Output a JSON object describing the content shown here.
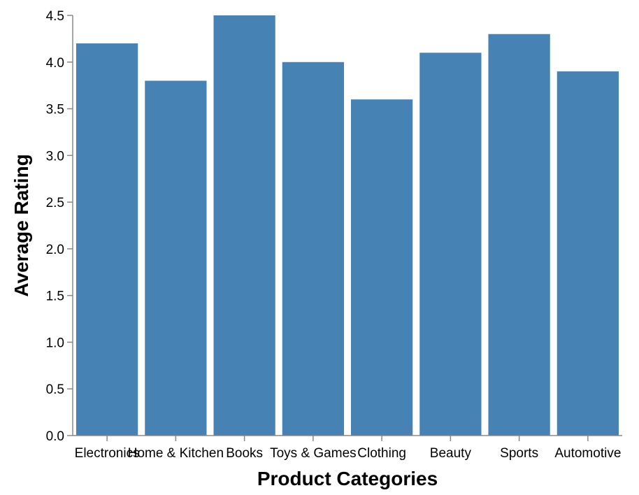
{
  "chart_data": {
    "type": "bar",
    "categories": [
      "Electronics",
      "Home & Kitchen",
      "Books",
      "Toys & Games",
      "Clothing",
      "Beauty",
      "Sports",
      "Automotive"
    ],
    "values": [
      4.2,
      3.8,
      4.5,
      4.0,
      3.6,
      4.1,
      4.3,
      3.9
    ],
    "title": "",
    "xlabel": "Product Categories",
    "ylabel": "Average Rating",
    "ylim": [
      0,
      4.5
    ],
    "yticks": [
      "0.0",
      "0.5",
      "1.0",
      "1.5",
      "2.0",
      "2.5",
      "3.0",
      "3.5",
      "4.0",
      "4.5"
    ],
    "grid": false,
    "bar_color": "#4682b4"
  }
}
